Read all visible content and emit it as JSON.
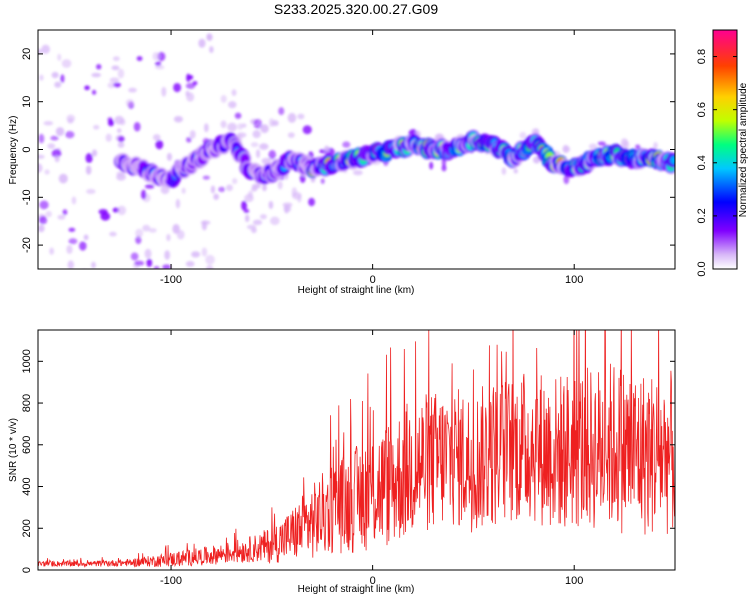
{
  "title": "S233.2025.320.00.27.G09",
  "chart_data": [
    {
      "type": "heatmap",
      "xlabel": "Height of straight line (km)",
      "ylabel": "Frequency (Hz)",
      "xlim": [
        -166,
        150
      ],
      "ylim": [
        -25,
        25
      ],
      "x_ticks": [
        -100,
        0,
        100
      ],
      "y_ticks": [
        -20,
        -10,
        0,
        10,
        20
      ],
      "colorbar": {
        "label": "Normalized spectral amplitude",
        "range": [
          0.0,
          0.9
        ],
        "ticks": [
          0.0,
          0.2,
          0.4,
          0.6,
          0.8
        ],
        "colors": [
          "#ffffff",
          "#d8b8f8",
          "#8000ff",
          "#0000ff",
          "#00c8ff",
          "#00ff80",
          "#c0ff00",
          "#ffd000",
          "#ff4000",
          "#ff0090"
        ]
      },
      "ridge": {
        "x": [
          -130,
          -120,
          -110,
          -100,
          -90,
          -80,
          -70,
          -60,
          -50,
          -40,
          -30,
          -20,
          -10,
          0,
          10,
          20,
          30,
          40,
          50,
          60,
          70,
          80,
          90,
          100,
          110,
          120,
          130,
          140,
          150
        ],
        "y": [
          -2,
          -3,
          -5,
          -6,
          -3,
          0,
          2,
          -5,
          -5,
          -2,
          -4,
          -3,
          -2,
          -1,
          0,
          1,
          0,
          0,
          2,
          1,
          -2,
          2,
          -3,
          -4,
          -2,
          -1,
          -2,
          -2,
          -3
        ]
      }
    },
    {
      "type": "line",
      "xlabel": "Height of straight line (km)",
      "ylabel": "SNR (10 * v/v)",
      "xlim": [
        -166,
        150
      ],
      "ylim": [
        0,
        1150
      ],
      "x_ticks": [
        -100,
        0,
        100
      ],
      "y_ticks": [
        0,
        200,
        400,
        600,
        800,
        1000
      ],
      "line_color": "#ee2020",
      "envelope": {
        "x": [
          -166,
          -140,
          -120,
          -100,
          -80,
          -60,
          -50,
          -40,
          -35,
          -30,
          -20,
          -10,
          0,
          10,
          20,
          30,
          40,
          50,
          60,
          70,
          80,
          90,
          100,
          110,
          120,
          130,
          140,
          150
        ],
        "mean": [
          30,
          30,
          35,
          50,
          70,
          100,
          120,
          170,
          200,
          230,
          300,
          330,
          380,
          420,
          500,
          520,
          540,
          520,
          560,
          580,
          600,
          560,
          580,
          580,
          600,
          560,
          560,
          560
        ],
        "spread": [
          15,
          15,
          20,
          40,
          50,
          70,
          100,
          140,
          180,
          200,
          250,
          280,
          320,
          350,
          380,
          380,
          380,
          380,
          400,
          400,
          420,
          420,
          440,
          440,
          460,
          460,
          440,
          440
        ]
      }
    }
  ]
}
